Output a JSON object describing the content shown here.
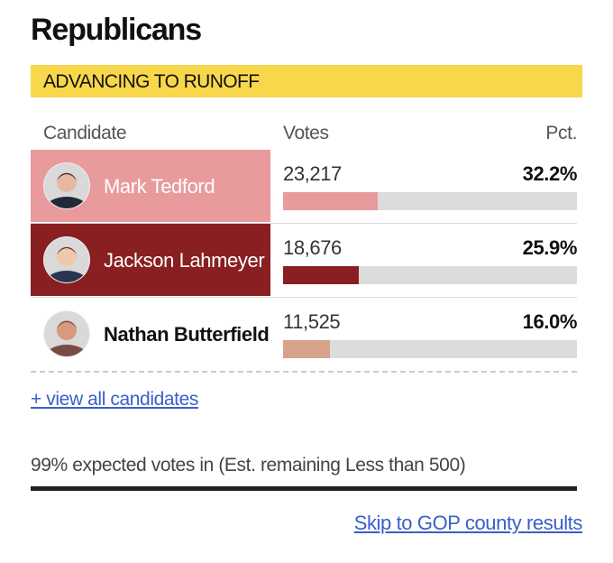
{
  "header": {
    "title": "Republicans",
    "banner": "ADVANCING TO RUNOFF"
  },
  "table": {
    "columns": [
      "Candidate",
      "Votes",
      "Pct."
    ],
    "rows": [
      {
        "name": "Mark Tedford",
        "votes": "23,217",
        "pct": {
          "value": 32.2,
          "label": "32.2%"
        },
        "color": "#e99a9c"
      },
      {
        "name": "Jackson Lahmeyer",
        "votes": "18,676",
        "pct": {
          "value": 25.9,
          "label": "25.9%"
        },
        "color": "#8a1f22"
      },
      {
        "name": "Nathan Butterfield",
        "votes": "11,525",
        "pct": {
          "value": 16.0,
          "label": "16.0%"
        },
        "color": "#d8a18a"
      }
    ]
  },
  "links": {
    "view_all": "+ view all candidates",
    "skip": "Skip to GOP county results"
  },
  "footer": {
    "status": "99% expected votes in (Est. remaining Less than 500)"
  }
}
